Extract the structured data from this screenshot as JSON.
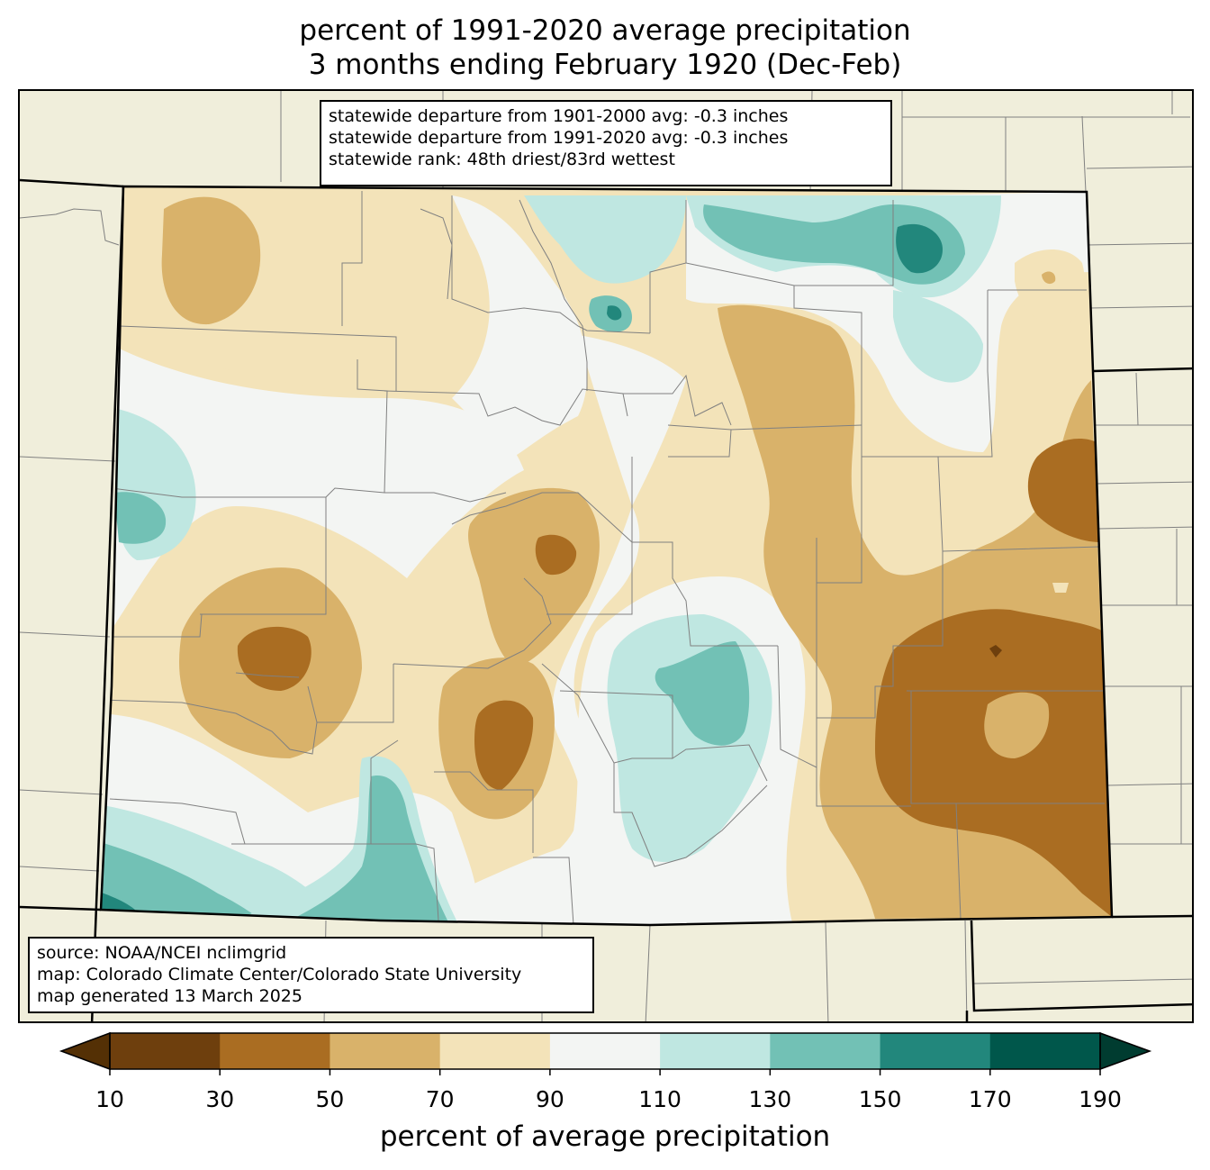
{
  "title": {
    "line1": "percent of 1991-2020 average precipitation",
    "line2": "3 months ending February 1920 (Dec-Feb)"
  },
  "stats": {
    "line1": "statewide departure from 1901-2000 avg: -0.3 inches",
    "line2": "statewide departure from 1991-2020 avg: -0.3 inches",
    "line3": "statewide rank: 48th driest/83rd wettest"
  },
  "source": {
    "line1": "source: NOAA/NCEI nclimgrid",
    "line2": "map: Colorado Climate Center/Colorado State University",
    "line3": "map generated 13 March 2025"
  },
  "colorbar": {
    "label": "percent of average precipitation",
    "ticks": [
      "10",
      "30",
      "50",
      "70",
      "90",
      "110",
      "130",
      "150",
      "170",
      "190"
    ],
    "colors": [
      "#6e3f0d",
      "#aa6d22",
      "#d9b26a",
      "#f3e3b9",
      "#f3f5f3",
      "#bfe7e1",
      "#72c1b5",
      "#22877c",
      "#00574b"
    ],
    "under_color": "#543005",
    "over_color": "#003c30"
  },
  "map_colors": {
    "land": "#f0eedb",
    "border": "#000000",
    "county": "#808080"
  }
}
